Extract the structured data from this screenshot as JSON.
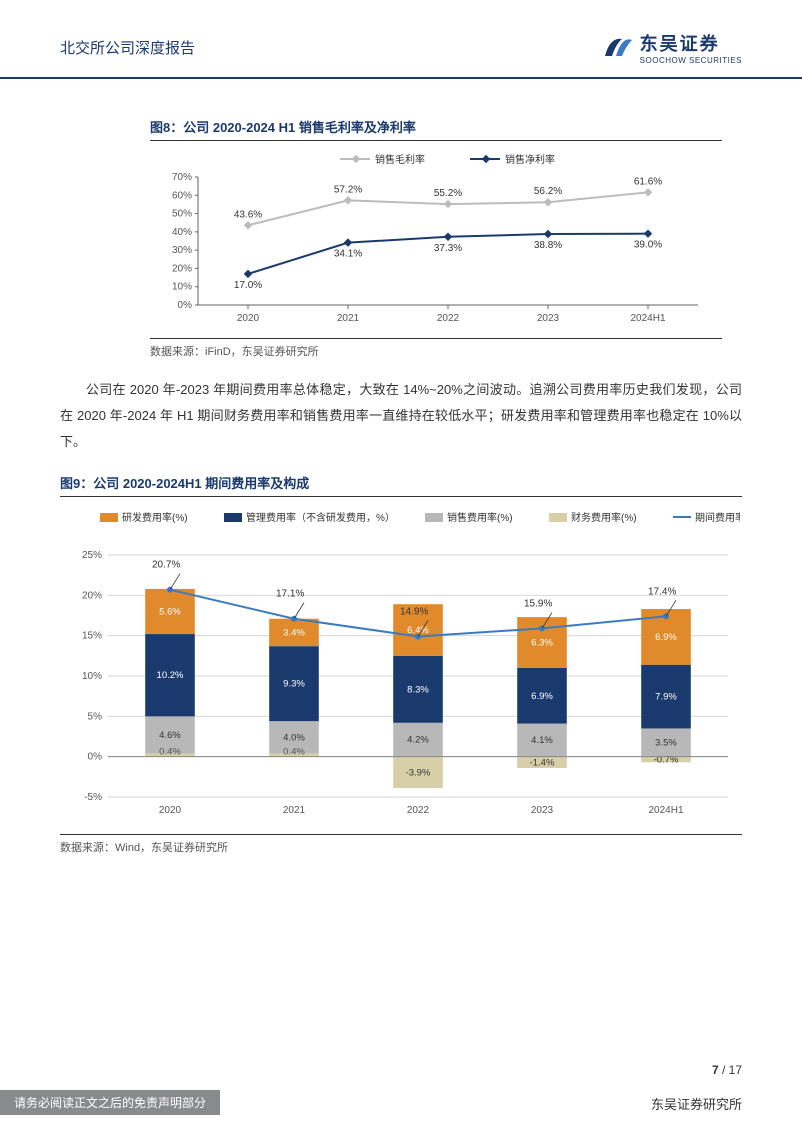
{
  "header": {
    "title": "北交所公司深度报告",
    "logo_cn": "东吴证券",
    "logo_en": "SOOCHOW SECURITIES"
  },
  "figure8": {
    "title": "图8：公司 2020-2024 H1 销售毛利率及净利率",
    "source_label": "数据来源：iFinD，东吴证券研究所",
    "legend_gross": "销售毛利率",
    "legend_net": "销售净利率",
    "type": "line",
    "categories": [
      "2020",
      "2021",
      "2022",
      "2023",
      "2024H1"
    ],
    "gross_values": [
      43.6,
      57.2,
      55.2,
      56.2,
      61.6
    ],
    "net_values": [
      17.0,
      34.1,
      37.3,
      38.8,
      39.0
    ],
    "gross_labels": [
      "43.6%",
      "57.2%",
      "55.2%",
      "56.2%",
      "61.6%"
    ],
    "net_labels": [
      "17.0%",
      "34.1%",
      "37.3%",
      "38.8%",
      "39.0%"
    ],
    "ylim": [
      0,
      70
    ],
    "ytick_step": 10,
    "ytick_labels": [
      "0%",
      "10%",
      "20%",
      "30%",
      "40%",
      "50%",
      "60%",
      "70%"
    ],
    "gross_color": "#bcbcbc",
    "net_color": "#1a3a6e",
    "axis_color": "#666666",
    "grid_color": "#d0d0d0",
    "background_color": "#ffffff",
    "label_fontsize": 10,
    "line_width": 2,
    "marker": "diamond",
    "marker_size": 5
  },
  "paragraph": "公司在 2020 年-2023 年期间费用率总体稳定，大致在 14%~20%之间波动。追溯公司费用率历史我们发现，公司在 2020 年-2024 年 H1 期间财务费用率和销售费用率一直维持在较低水平；研发费用率和管理费用率也稳定在 10%以下。",
  "figure9": {
    "title": "图9：公司 2020-2024H1 期间费用率及构成",
    "source_label": "数据来源：Wind，东吴证券研究所",
    "type": "stacked-bar-line",
    "categories": [
      "2020",
      "2021",
      "2022",
      "2023",
      "2024H1"
    ],
    "legend": {
      "rd": "研发费用率(%)",
      "mgmt": "管理费用率（不含研发费用，%）",
      "sales": "销售费用率(%)",
      "fin": "财务费用率(%)",
      "period": "期间费用率(%)"
    },
    "colors": {
      "rd": "#e08a2c",
      "mgmt": "#1a3a6e",
      "sales": "#b8b8b8",
      "fin": "#d6cfa8",
      "period_line": "#3b7bbf"
    },
    "rd": [
      5.6,
      3.4,
      6.4,
      6.3,
      6.9
    ],
    "mgmt": [
      10.2,
      9.3,
      8.3,
      6.9,
      7.9
    ],
    "sales": [
      4.6,
      4.0,
      4.2,
      4.1,
      3.5
    ],
    "fin": [
      0.4,
      0.4,
      -3.9,
      -1.4,
      -0.7
    ],
    "period": [
      20.7,
      17.1,
      14.9,
      15.9,
      17.4
    ],
    "rd_labels": [
      "5.6%",
      "3.4%",
      "6.4%",
      "6.3%",
      "6.9%"
    ],
    "mgmt_labels": [
      "10.2%",
      "9.3%",
      "8.3%",
      "6.9%",
      "7.9%"
    ],
    "sales_labels": [
      "4.6%",
      "4.0%",
      "4.2%",
      "4.1%",
      "3.5%"
    ],
    "fin_labels": [
      "0.4%",
      "0.4%",
      "-3.9%",
      "-1.4%",
      "-0.7%"
    ],
    "period_labels": [
      "20.7%",
      "17.1%",
      "14.9%",
      "15.9%",
      "17.4%"
    ],
    "ylim": [
      -5,
      25
    ],
    "ytick_step": 5,
    "ytick_labels": [
      "-5%",
      "0%",
      "5%",
      "10%",
      "15%",
      "20%",
      "25%"
    ],
    "bar_width": 0.4,
    "grid_color": "#d6d6d6",
    "axis_color": "#666666",
    "background_color": "#ffffff",
    "label_fontsize": 10,
    "line_width": 2
  },
  "footer": {
    "page_current": "7",
    "page_sep": " / ",
    "page_total": "17",
    "disclaimer": "请务必阅读正文之后的免责声明部分",
    "org": "东吴证券研究所"
  }
}
